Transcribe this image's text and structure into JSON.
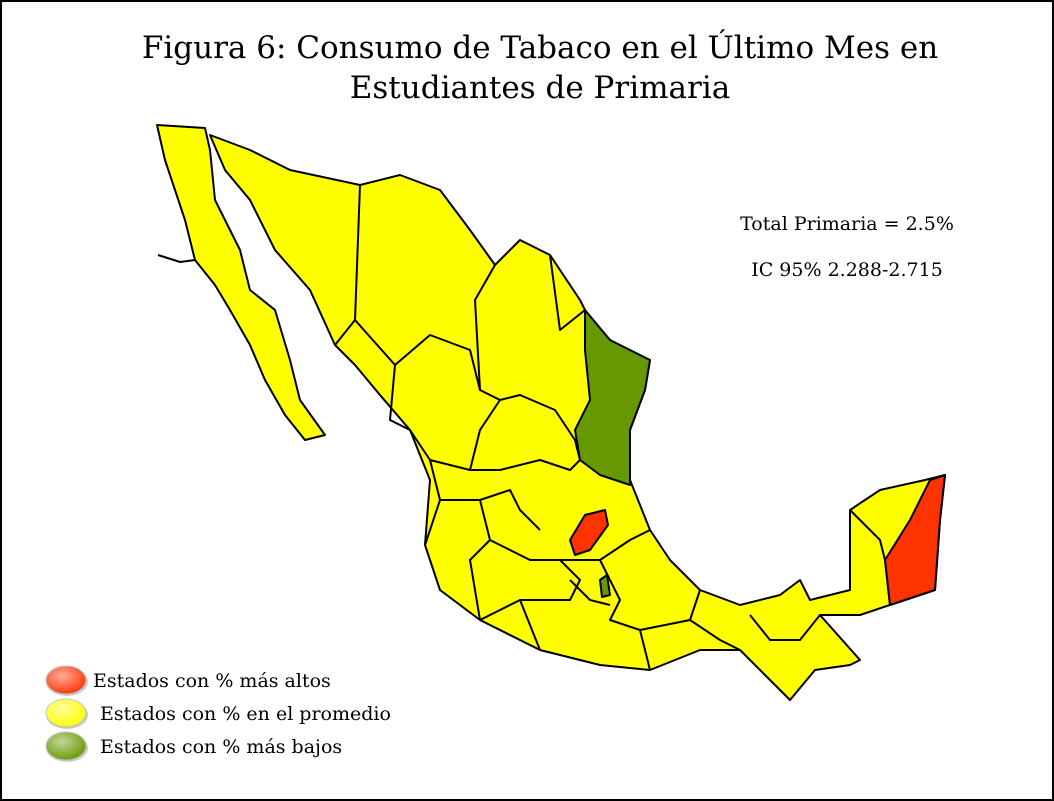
{
  "title_lines": [
    "Figura 6: Consumo de Tabaco en el Último Mes en",
    "Estudiantes de Primaria"
  ],
  "annotations": [
    "Total Primaria = 2.5%",
    "IC 95% 2.288-2.715"
  ],
  "legend": [
    {
      "label": "Estados con % más altos",
      "color": "#ff3300"
    },
    {
      "label": "Estados con % en el promedio",
      "color": "#ffff00"
    },
    {
      "label": "Estados con % más bajos",
      "color": "#669900"
    }
  ]
}
